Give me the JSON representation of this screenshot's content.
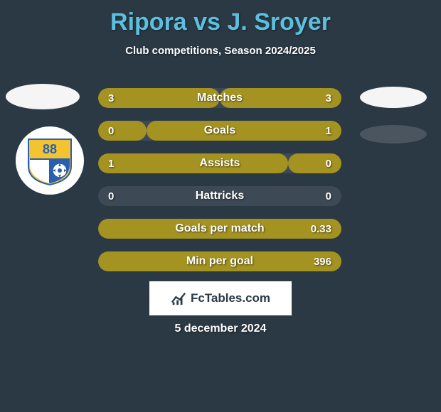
{
  "title": "Ripora vs J. Sroyer",
  "subtitle": "Club competitions, Season 2024/2025",
  "date": "5 december 2024",
  "footer_brand": "FcTables.com",
  "colors": {
    "background": "#2b3945",
    "title": "#5bc0de",
    "bar_track": "#3d4a56",
    "left_fill": "#a49320",
    "right_fill": "#a49320",
    "text": "#ffffff"
  },
  "club_badge": {
    "number": "88",
    "top_color": "#f4c430",
    "bottom_left": "#ffffff",
    "bottom_right": "#2a5fb0"
  },
  "bars": [
    {
      "label": "Matches",
      "left_value": "3",
      "right_value": "3",
      "left_pct": 50,
      "right_pct": 50
    },
    {
      "label": "Goals",
      "left_value": "0",
      "right_value": "1",
      "left_pct": 20,
      "right_pct": 80
    },
    {
      "label": "Assists",
      "left_value": "1",
      "right_value": "0",
      "left_pct": 78,
      "right_pct": 22
    },
    {
      "label": "Hattricks",
      "left_value": "0",
      "right_value": "0",
      "left_pct": 0,
      "right_pct": 0
    },
    {
      "label": "Goals per match",
      "left_value": "",
      "right_value": "0.33",
      "left_pct": 0,
      "right_pct": 100
    },
    {
      "label": "Min per goal",
      "left_value": "",
      "right_value": "396",
      "left_pct": 0,
      "right_pct": 100
    }
  ]
}
